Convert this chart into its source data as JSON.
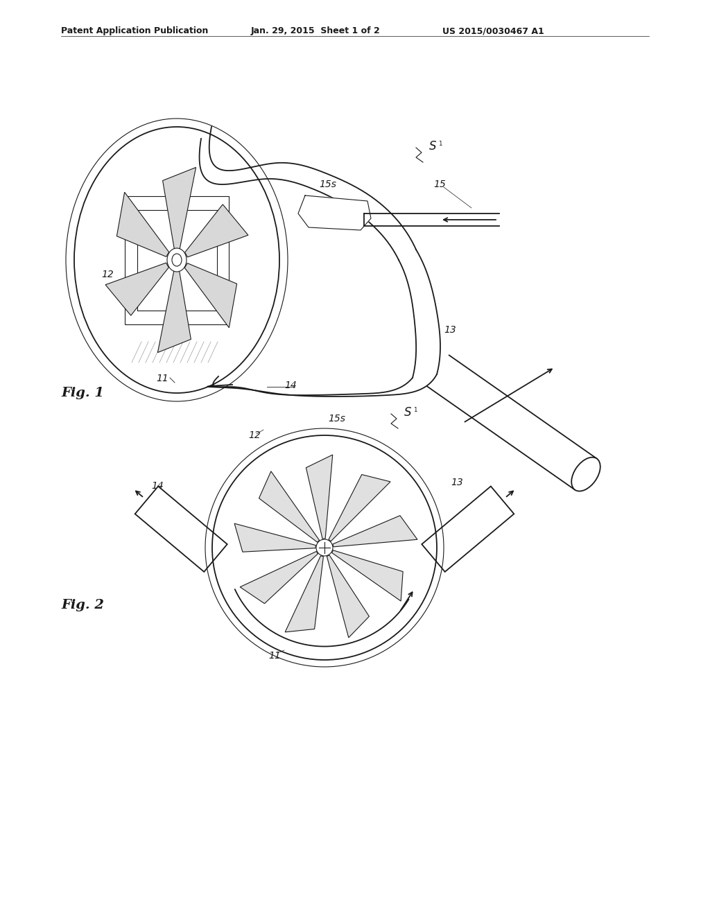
{
  "background_color": "#ffffff",
  "header_left": "Patent Application Publication",
  "header_mid": "Jan. 29, 2015  Sheet 1 of 2",
  "header_right": "US 2015/0030467 A1",
  "fig1_label": "Fig. 1",
  "fig2_label": "Fig. 2",
  "line_color": "#1a1a1a",
  "lw": 1.3,
  "lw_thin": 0.8,
  "lw_thick": 1.8
}
